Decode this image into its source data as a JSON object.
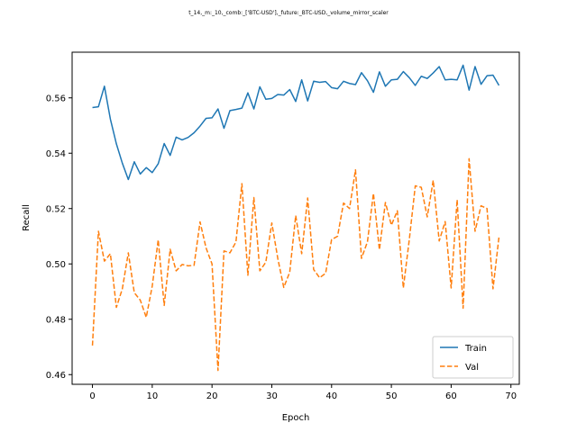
{
  "chart_data": {
    "type": "line",
    "title": "t_14,_m:_10,_comb:_['BTC-USD'],_future:_BTC-USD,_volume_mirror_scaler",
    "xlabel": "Epoch",
    "ylabel": "Recall",
    "xlim": [
      -3.4,
      71.4
    ],
    "ylim": [
      0.4565,
      0.5765
    ],
    "x_ticks": [
      0,
      10,
      20,
      30,
      40,
      50,
      60,
      70
    ],
    "y_ticks": [
      0.46,
      0.48,
      0.5,
      0.52,
      0.54,
      0.56
    ],
    "y_tick_labels": [
      "0.46",
      "0.48",
      "0.50",
      "0.52",
      "0.54",
      "0.56"
    ],
    "x_tick_labels": [
      "0",
      "10",
      "20",
      "30",
      "40",
      "50",
      "60",
      "70"
    ],
    "grid": false,
    "legend_position": "lower-right",
    "x": [
      0,
      1,
      2,
      3,
      4,
      5,
      6,
      7,
      8,
      9,
      10,
      11,
      12,
      13,
      14,
      15,
      16,
      17,
      18,
      19,
      20,
      21,
      22,
      23,
      24,
      25,
      26,
      27,
      28,
      29,
      30,
      31,
      32,
      33,
      34,
      35,
      36,
      37,
      38,
      39,
      40,
      41,
      42,
      43,
      44,
      45,
      46,
      47,
      48,
      49,
      50,
      51,
      52,
      53,
      54,
      55,
      56,
      57,
      58,
      59,
      60,
      61,
      62,
      63,
      64,
      65,
      66,
      67,
      68
    ],
    "series": [
      {
        "name": "Train",
        "color": "#1f77b4",
        "style": "solid",
        "values": [
          0.5565,
          0.5568,
          0.5642,
          0.5523,
          0.5434,
          0.5364,
          0.5305,
          0.5369,
          0.5325,
          0.5348,
          0.533,
          0.5362,
          0.5435,
          0.5392,
          0.5458,
          0.5448,
          0.5457,
          0.5474,
          0.5498,
          0.5526,
          0.5528,
          0.556,
          0.549,
          0.5554,
          0.5558,
          0.5563,
          0.5618,
          0.556,
          0.564,
          0.5595,
          0.5598,
          0.5612,
          0.561,
          0.563,
          0.5587,
          0.5665,
          0.5589,
          0.566,
          0.5656,
          0.5659,
          0.5637,
          0.5633,
          0.566,
          0.5652,
          0.5648,
          0.5691,
          0.5662,
          0.562,
          0.5694,
          0.5642,
          0.5665,
          0.5667,
          0.5695,
          0.5673,
          0.5645,
          0.5678,
          0.567,
          0.569,
          0.5713,
          0.5665,
          0.5667,
          0.5665,
          0.5718,
          0.5628,
          0.5713,
          0.5649,
          0.568,
          0.5682,
          0.5645
        ]
      },
      {
        "name": "Val",
        "color": "#ff7f0e",
        "style": "dashed",
        "values": [
          0.4705,
          0.5118,
          0.501,
          0.5037,
          0.4843,
          0.491,
          0.504,
          0.4896,
          0.4869,
          0.4807,
          0.492,
          0.5087,
          0.485,
          0.5053,
          0.4975,
          0.4998,
          0.4993,
          0.4995,
          0.5152,
          0.5058,
          0.5,
          0.4615,
          0.5047,
          0.504,
          0.5079,
          0.529,
          0.4959,
          0.524,
          0.4975,
          0.5006,
          0.5148,
          0.502,
          0.4915,
          0.497,
          0.5175,
          0.5037,
          0.5238,
          0.498,
          0.495,
          0.4966,
          0.5088,
          0.51,
          0.522,
          0.52,
          0.534,
          0.502,
          0.508,
          0.5255,
          0.5051,
          0.5222,
          0.514,
          0.5192,
          0.4913,
          0.5088,
          0.5282,
          0.5277,
          0.517,
          0.5302,
          0.5083,
          0.5153,
          0.4913,
          0.5232,
          0.484,
          0.538,
          0.5118,
          0.521,
          0.52,
          0.491,
          0.5097
        ]
      }
    ]
  }
}
